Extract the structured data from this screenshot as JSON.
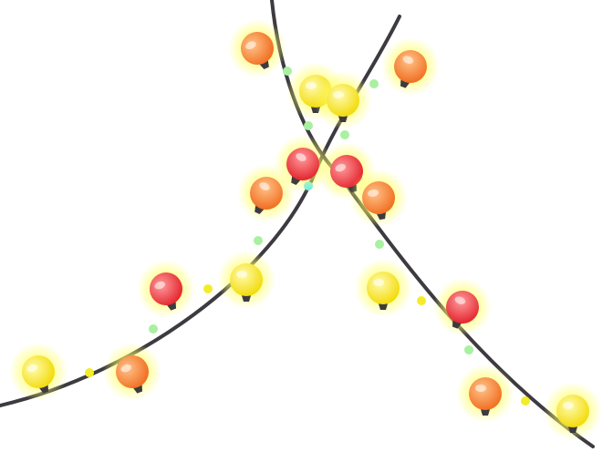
{
  "colors": {
    "wire": "#3d3b40",
    "glow": "#ffff66",
    "bulb_red": [
      "#ff8a8a",
      "#e8232d"
    ],
    "bulb_orange": [
      "#ffc285",
      "#f46b1f"
    ],
    "bulb_yellow": [
      "#fffa9a",
      "#f4dc00"
    ],
    "dot_green": "#a9f0a0",
    "dot_yellow": "#f3ec2a",
    "dot_cyan": "#5ee7ff"
  },
  "bulbs": [
    {
      "color": "orange"
    },
    {
      "color": "yellow"
    },
    {
      "color": "red"
    },
    {
      "color": "orange"
    },
    {
      "color": "red"
    },
    {
      "color": "yellow"
    },
    {
      "color": "yellow"
    },
    {
      "color": "orange"
    },
    {
      "color": "orange"
    },
    {
      "color": "yellow"
    },
    {
      "color": "red"
    },
    {
      "color": "orange"
    },
    {
      "color": "yellow"
    },
    {
      "color": "red"
    },
    {
      "color": "orange"
    },
    {
      "color": "yellow"
    }
  ]
}
